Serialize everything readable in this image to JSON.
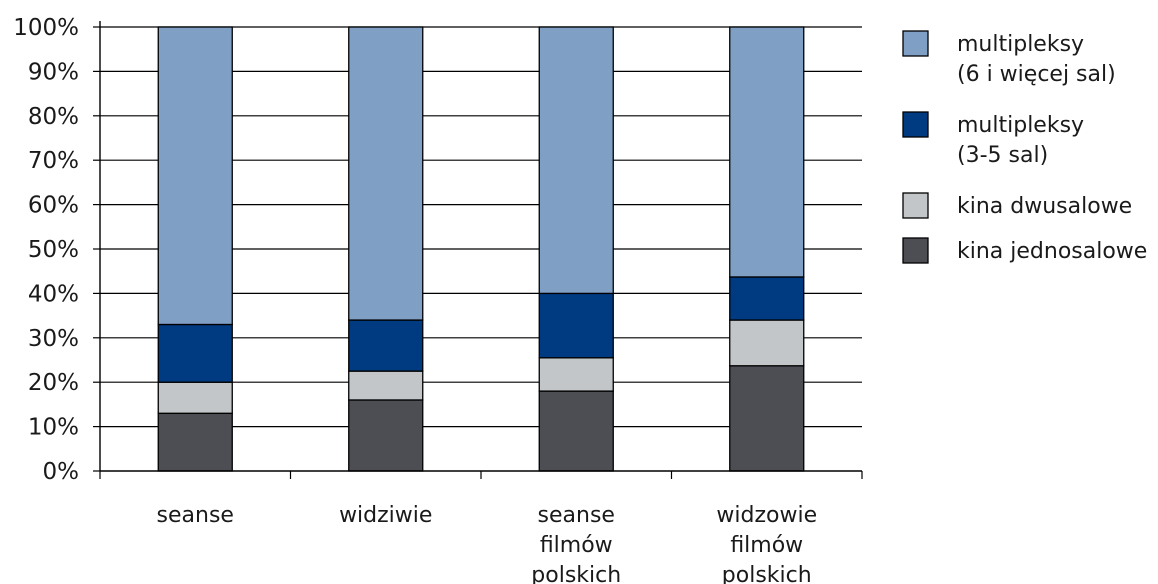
{
  "chart_data": {
    "type": "bar",
    "stacked": true,
    "title": "",
    "xlabel": "",
    "ylabel": "",
    "ylim": [
      0,
      100
    ],
    "yticks": [
      "0%",
      "10%",
      "20%",
      "30%",
      "40%",
      "50%",
      "60%",
      "70%",
      "80%",
      "90%",
      "100%"
    ],
    "grid": true,
    "legend_position": "right",
    "categories": [
      [
        "seanse"
      ],
      [
        "widziwie"
      ],
      [
        "seanse",
        "filmów",
        "polskich"
      ],
      [
        "widzowie",
        "filmów",
        "polskich"
      ]
    ],
    "series": [
      {
        "name": "kina jednosalowe",
        "color": "#4d4d54",
        "values": [
          13,
          16,
          18,
          23.7
        ]
      },
      {
        "name": "kina dwusalowe",
        "color": "#c3c6c9",
        "values": [
          7,
          6.5,
          7.5,
          10.3
        ]
      },
      {
        "name": "multipleksy (3-5 sal)",
        "color": "#003a80",
        "values": [
          13,
          11.5,
          14.5,
          9.7
        ]
      },
      {
        "name": "multipleksy (6 i więcej sal)",
        "color": "#7f9fc5",
        "values": [
          67,
          66,
          60,
          56.3
        ]
      }
    ],
    "legend": [
      {
        "lines": [
          "multipleksy",
          "(6 i więcej sal)"
        ],
        "color": "#7f9fc5"
      },
      {
        "lines": [
          "multipleksy",
          "(3-5 sal)"
        ],
        "color": "#003a80"
      },
      {
        "lines": [
          "kina dwusalowe"
        ],
        "color": "#c3c6c9"
      },
      {
        "lines": [
          "kina jednosalowe"
        ],
        "color": "#4d4d54"
      }
    ]
  }
}
